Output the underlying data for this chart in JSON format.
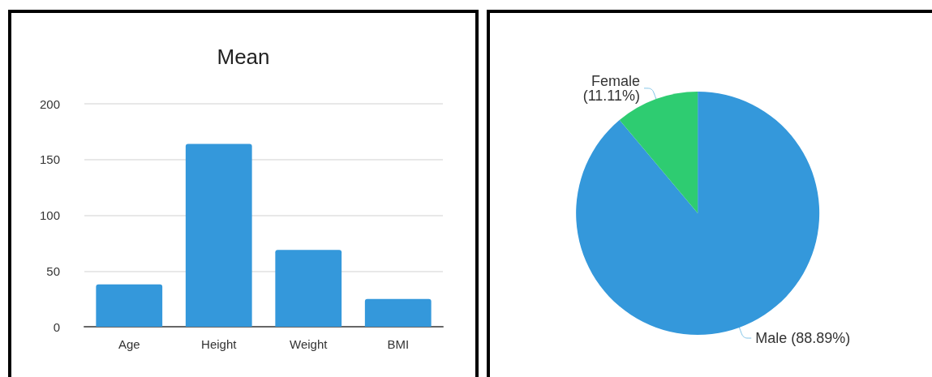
{
  "chart_data": [
    {
      "type": "bar",
      "title": "Mean",
      "categories": [
        "Age",
        "Height",
        "Weight",
        "BMI"
      ],
      "values": [
        38,
        164,
        69,
        25
      ],
      "color": "#3498db",
      "ylim": [
        0,
        200
      ],
      "yticks": [
        0,
        50,
        100,
        150,
        200
      ],
      "grid": "y",
      "legend": false
    },
    {
      "type": "pie",
      "categories": [
        "Male",
        "Female"
      ],
      "values": [
        88.89,
        11.11
      ],
      "colors": [
        "#3498db",
        "#2ecc71"
      ],
      "value_labels": [
        "(88.89%)",
        "(11.11%)"
      ],
      "legend": false
    }
  ]
}
